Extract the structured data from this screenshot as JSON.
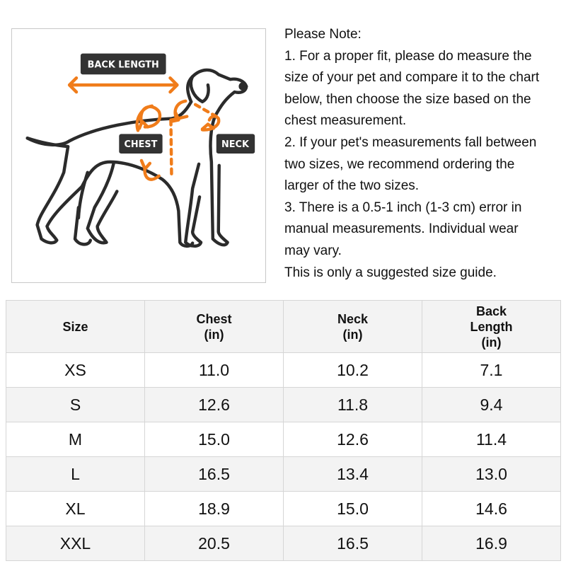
{
  "figure": {
    "labels": {
      "back_length": "BACK LENGTH",
      "chest": "CHEST",
      "neck": "NECK"
    },
    "colors": {
      "outline": "#2b2b2b",
      "arrow": "#f07c1a",
      "label_bg": "#333333"
    }
  },
  "notes": [
    "Please Note:",
    "1. For a proper fit, please do measure the",
    "size of your pet and compare it to the chart",
    "below, then choose the size based on the",
    "chest measurement.",
    "2. If your pet's measurements fall between",
    "two sizes, we recommend ordering the",
    "larger of the two sizes.",
    "3. There is a 0.5-1 inch (1-3 cm) error in",
    "manual measurements. Individual wear",
    "may vary.",
    "This is only a suggested size guide."
  ],
  "table": {
    "headers": [
      [
        "Size"
      ],
      [
        "Chest",
        "(in)"
      ],
      [
        "Neck",
        "(in)"
      ],
      [
        "Back",
        "Length",
        "(in)"
      ]
    ],
    "rows": [
      [
        "XS",
        "11.0",
        "10.2",
        "7.1"
      ],
      [
        "S",
        "12.6",
        "11.8",
        "9.4"
      ],
      [
        "M",
        "15.0",
        "12.6",
        "11.4"
      ],
      [
        "L",
        "16.5",
        "13.4",
        "13.0"
      ],
      [
        "XL",
        "18.9",
        "15.0",
        "14.6"
      ],
      [
        "XXL",
        "20.5",
        "16.5",
        "16.9"
      ]
    ]
  }
}
